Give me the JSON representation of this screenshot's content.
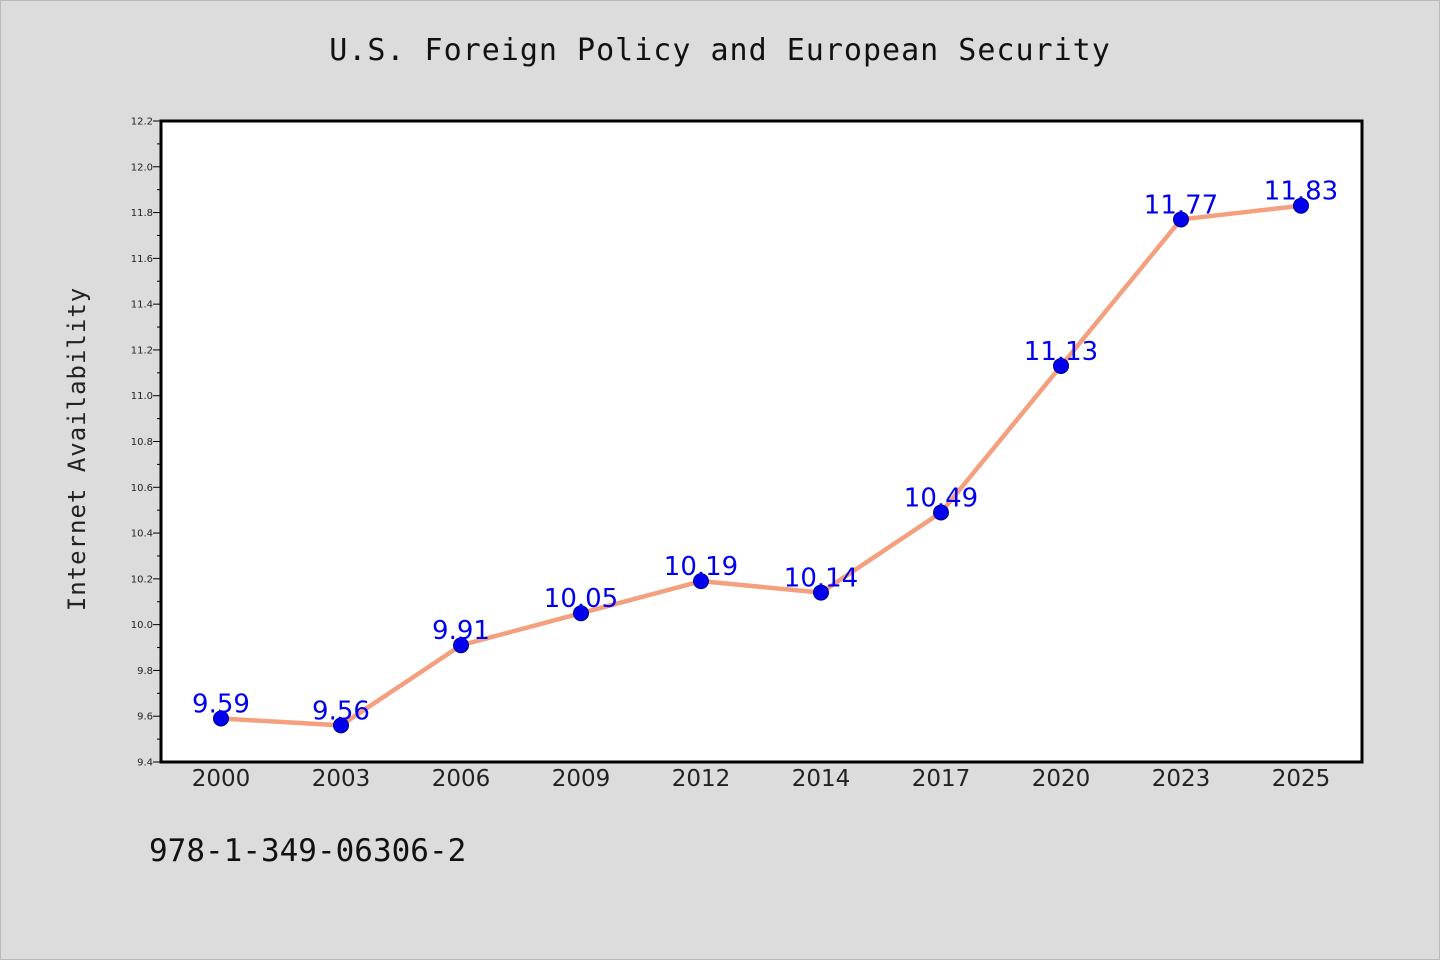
{
  "chart_data": {
    "type": "line",
    "title": "U.S. Foreign Policy and European Security",
    "xlabel": "",
    "ylabel": "Internet Availability",
    "categories": [
      "2000",
      "2003",
      "2006",
      "2009",
      "2012",
      "2014",
      "2017",
      "2020",
      "2023",
      "2025"
    ],
    "series": [
      {
        "values": [
          9.59,
          9.56,
          9.91,
          10.05,
          10.19,
          10.14,
          10.49,
          11.13,
          11.77,
          11.83
        ],
        "line_color": "#f4a07f",
        "marker_color": "#0000ee"
      }
    ],
    "data_labels": [
      "9.59",
      "9.56",
      "9.91",
      "10.05",
      "10.19",
      "10.14",
      "10.49",
      "11.13",
      "11.77",
      "11.83"
    ],
    "ylim": [
      9.4,
      12.2
    ],
    "yticks": [
      "9.4",
      "9.6",
      "9.8",
      "10.0",
      "10.2",
      "10.4",
      "10.6",
      "10.8",
      "11.0",
      "11.2",
      "11.4",
      "11.6",
      "11.8",
      "12.0",
      "12.2"
    ],
    "grid": false,
    "label_color": "#0000ee"
  },
  "footer": {
    "isbn": "978-1-349-06306-2"
  }
}
